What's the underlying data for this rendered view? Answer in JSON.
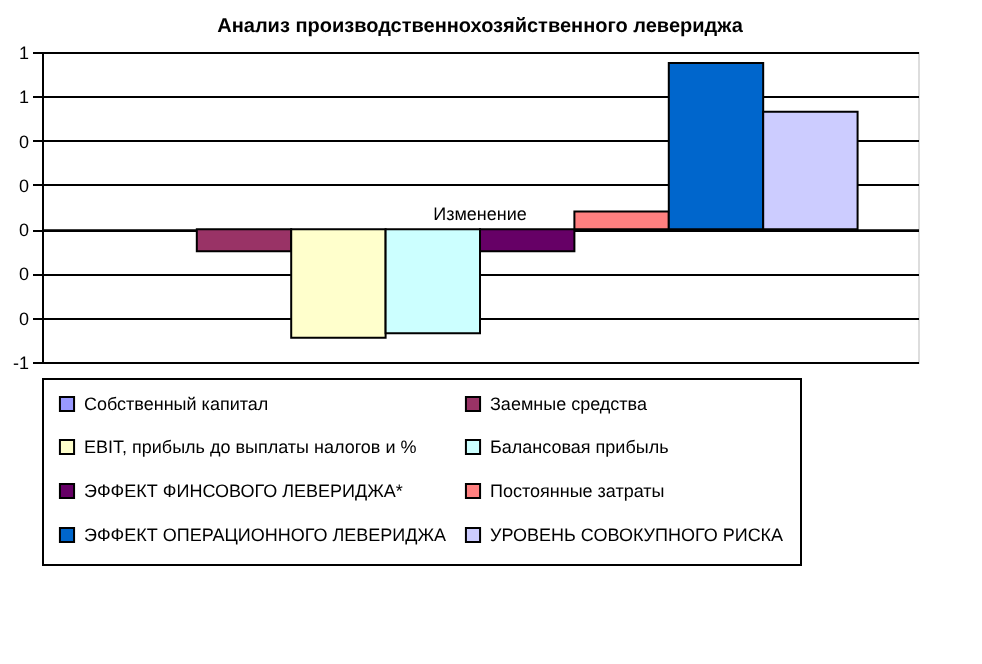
{
  "chart_data": {
    "type": "bar",
    "title": "Анализ производственнохозяйственного левериджа",
    "categories": [
      "Изменение"
    ],
    "series": [
      {
        "name": "Собственный капитал",
        "color": "#9999ff",
        "values": [
          0
        ]
      },
      {
        "name": "Заемные средства",
        "color": "#993366",
        "values": [
          -0.1
        ]
      },
      {
        "name": "EBIT, прибыль до выплаты налогов и %",
        "color": "#ffffcc",
        "values": [
          -0.49
        ]
      },
      {
        "name": "Балансовая прибыль",
        "color": "#ccffff",
        "values": [
          -0.47
        ]
      },
      {
        "name": "ЭФФЕКТ ФИНСОВОГО ЛЕВЕРИДЖА*",
        "color": "#660066",
        "values": [
          -0.1
        ]
      },
      {
        "name": "Постоянные затраты",
        "color": "#ff8080",
        "values": [
          0.08
        ]
      },
      {
        "name": "ЭФФЕКТ ОПЕРАЦИОННОГО ЛЕВЕРИДЖА",
        "color": "#0066cc",
        "values": [
          0.75
        ]
      },
      {
        "name": "УРОВЕНЬ СОВОКУПНОГО РИСКА",
        "color": "#ccccff",
        "values": [
          0.53
        ]
      }
    ],
    "ylim": [
      -0.6,
      0.8
    ],
    "yticks": [
      {
        "value": -0.6,
        "label": "-1"
      },
      {
        "value": -0.4,
        "label": "0"
      },
      {
        "value": -0.2,
        "label": "0"
      },
      {
        "value": 0,
        "label": "0"
      },
      {
        "value": 0.2,
        "label": "0"
      },
      {
        "value": 0.4,
        "label": "0"
      },
      {
        "value": 0.6,
        "label": "1"
      },
      {
        "value": 0.8,
        "label": "1"
      }
    ],
    "grid": "y",
    "legend": "bottom"
  }
}
